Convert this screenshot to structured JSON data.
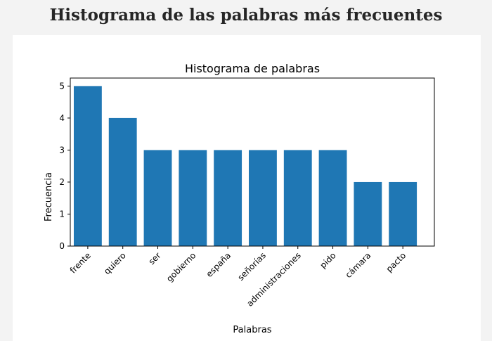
{
  "page": {
    "heading": "Histograma de las palabras más frecuentes"
  },
  "colors": {
    "bar": "#1f77b4",
    "background": "#f3f3f3",
    "figure": "#ffffff"
  },
  "chart_data": {
    "type": "bar",
    "title": "Histograma de palabras",
    "xlabel": "Palabras",
    "ylabel": "Frecuencia",
    "categories": [
      "frente",
      "quiero",
      "ser",
      "gobierno",
      "españa",
      "señorías",
      "administraciones",
      "pido",
      "cámara",
      "pacto"
    ],
    "values": [
      5,
      4,
      3,
      3,
      3,
      3,
      3,
      3,
      2,
      2
    ],
    "ylim": [
      0,
      5.25
    ],
    "yticks": [
      "0",
      "1",
      "2",
      "3",
      "4",
      "5"
    ],
    "grid": false,
    "legend": "none"
  }
}
